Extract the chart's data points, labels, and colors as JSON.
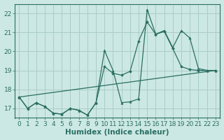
{
  "title": "",
  "xlabel": "Humidex (Indice chaleur)",
  "ylabel": "",
  "bg_color": "#cce8e4",
  "grid_color": "#aaccc8",
  "line_color": "#2a6e62",
  "xlim": [
    -0.5,
    23.5
  ],
  "ylim": [
    16.5,
    22.5
  ],
  "xticks": [
    0,
    1,
    2,
    3,
    4,
    5,
    6,
    7,
    8,
    9,
    10,
    11,
    12,
    13,
    14,
    15,
    16,
    17,
    18,
    19,
    20,
    21,
    22,
    23
  ],
  "yticks": [
    17,
    18,
    19,
    20,
    21,
    22
  ],
  "line1_x": [
    0,
    1,
    2,
    3,
    4,
    5,
    6,
    7,
    8,
    9,
    10,
    11,
    12,
    13,
    14,
    15,
    16,
    17,
    18,
    19,
    20,
    21,
    22,
    23
  ],
  "line1_y": [
    17.6,
    17.0,
    17.3,
    17.1,
    16.75,
    16.7,
    17.0,
    16.9,
    16.65,
    17.3,
    20.05,
    19.0,
    17.3,
    17.35,
    17.5,
    22.2,
    20.9,
    21.1,
    20.2,
    21.1,
    20.7,
    19.1,
    19.0,
    19.0
  ],
  "line2_x": [
    0,
    1,
    2,
    3,
    4,
    5,
    6,
    7,
    8,
    9,
    10,
    11,
    12,
    13,
    14,
    15,
    16,
    17,
    18,
    19,
    20,
    21,
    22,
    23
  ],
  "line2_y": [
    17.6,
    17.0,
    17.3,
    17.1,
    16.75,
    16.7,
    17.0,
    16.9,
    16.65,
    17.3,
    19.2,
    18.85,
    18.75,
    18.95,
    20.55,
    21.55,
    20.9,
    21.05,
    20.15,
    19.2,
    19.05,
    19.0,
    19.0,
    19.0
  ],
  "line3_x": [
    0,
    23
  ],
  "line3_y": [
    17.6,
    19.0
  ],
  "fontsize_xlabel": 7.5,
  "fontsize_tick": 6.5
}
